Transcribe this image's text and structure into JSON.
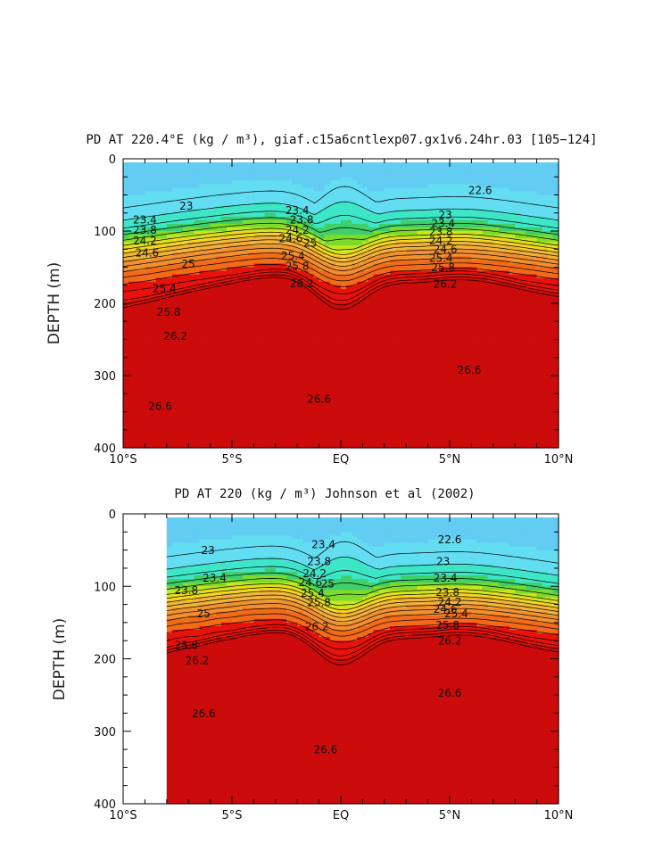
{
  "colors": {
    "palette": [
      "#ffffff",
      "#9b3bdb",
      "#1515e8",
      "#1e5ff0",
      "#2a8ff2",
      "#38b3f2",
      "#62ccf3",
      "#62ddf2",
      "#3ee6c8",
      "#3ecf6a",
      "#7ddb2a",
      "#c8e61c",
      "#f2d81c",
      "#f2b238",
      "#f29030",
      "#f26b18",
      "#e8120c",
      "#cc0b0b"
    ]
  },
  "chart_data": [
    {
      "type": "contour",
      "title": "PD AT 220.4°E (kg / m³), giaf.c15a6cntlexp07.gx1v6.24hr.03 [105−124]",
      "xlabel": "",
      "ylabel": "DEPTH (m)",
      "xlim": [
        -10,
        10
      ],
      "ylim": [
        400,
        0
      ],
      "xticks": [
        {
          "v": -10,
          "t": "10°S"
        },
        {
          "v": -5,
          "t": "5°S"
        },
        {
          "v": 0,
          "t": "EQ"
        },
        {
          "v": 5,
          "t": "5°N"
        },
        {
          "v": 10,
          "t": "10°N"
        }
      ],
      "yticks": [
        {
          "v": 0,
          "t": "0"
        },
        {
          "v": 100,
          "t": "100"
        },
        {
          "v": 200,
          "t": "200"
        },
        {
          "v": 300,
          "t": "300"
        },
        {
          "v": 400,
          "t": "400"
        }
      ],
      "data_xmin": -10,
      "data_top_depth": 5,
      "contour_levels": [
        22.2,
        22.4,
        22.6,
        22.8,
        23.0,
        23.2,
        23.4,
        23.6,
        23.8,
        24.0,
        24.2,
        24.4,
        24.6,
        24.8,
        25.0,
        25.2,
        25.4,
        25.6,
        25.8,
        26.0,
        26.2,
        26.4,
        26.6,
        26.8
      ],
      "contour_labels": [
        {
          "x": -7.1,
          "y": 68,
          "t": "23"
        },
        {
          "x": -9.0,
          "y": 87,
          "t": "23.4"
        },
        {
          "x": -9.0,
          "y": 101,
          "t": "23.8"
        },
        {
          "x": -9.0,
          "y": 116,
          "t": "24.2"
        },
        {
          "x": -8.9,
          "y": 133,
          "t": "24.6"
        },
        {
          "x": -7.0,
          "y": 148,
          "t": "25"
        },
        {
          "x": -8.1,
          "y": 182,
          "t": "25.4"
        },
        {
          "x": -7.9,
          "y": 215,
          "t": "25.8"
        },
        {
          "x": -7.6,
          "y": 248,
          "t": "26.2"
        },
        {
          "x": -8.3,
          "y": 345,
          "t": "26.6"
        },
        {
          "x": -2.0,
          "y": 74,
          "t": "23.4"
        },
        {
          "x": -1.8,
          "y": 87,
          "t": "23.8"
        },
        {
          "x": -2.0,
          "y": 101,
          "t": "24.2"
        },
        {
          "x": -2.3,
          "y": 113,
          "t": "24.6"
        },
        {
          "x": -1.4,
          "y": 119,
          "t": "25"
        },
        {
          "x": -2.2,
          "y": 137,
          "t": "25.4"
        },
        {
          "x": -2.0,
          "y": 151,
          "t": "25.8"
        },
        {
          "x": -1.8,
          "y": 175,
          "t": "26.2"
        },
        {
          "x": -1.0,
          "y": 335,
          "t": "26.6"
        },
        {
          "x": 6.4,
          "y": 46,
          "t": "22.6"
        },
        {
          "x": 4.8,
          "y": 80,
          "t": "23"
        },
        {
          "x": 4.7,
          "y": 92,
          "t": "23.4"
        },
        {
          "x": 4.6,
          "y": 104,
          "t": "23.8"
        },
        {
          "x": 4.6,
          "y": 116,
          "t": "24.2"
        },
        {
          "x": 4.8,
          "y": 128,
          "t": "24.6"
        },
        {
          "x": 4.6,
          "y": 140,
          "t": "25.4"
        },
        {
          "x": 4.7,
          "y": 153,
          "t": "25.8"
        },
        {
          "x": 4.8,
          "y": 176,
          "t": "26.2"
        },
        {
          "x": 5.9,
          "y": 295,
          "t": "26.6"
        }
      ]
    },
    {
      "type": "contour",
      "title": "PD AT 220 (kg / m³) Johnson et al (2002)",
      "xlabel": "",
      "ylabel": "DEPTH (m)",
      "xlim": [
        -10,
        10
      ],
      "ylim": [
        400,
        0
      ],
      "xticks": [
        {
          "v": -10,
          "t": "10°S"
        },
        {
          "v": -5,
          "t": "5°S"
        },
        {
          "v": 0,
          "t": "EQ"
        },
        {
          "v": 5,
          "t": "5°N"
        },
        {
          "v": 10,
          "t": "10°N"
        }
      ],
      "yticks": [
        {
          "v": 0,
          "t": "0"
        },
        {
          "v": 100,
          "t": "100"
        },
        {
          "v": 200,
          "t": "200"
        },
        {
          "v": 300,
          "t": "300"
        },
        {
          "v": 400,
          "t": "400"
        }
      ],
      "data_xmin": -8,
      "data_top_depth": 5,
      "contour_levels": [
        22.2,
        22.4,
        22.6,
        22.8,
        23.0,
        23.2,
        23.4,
        23.6,
        23.8,
        24.0,
        24.2,
        24.4,
        24.6,
        24.8,
        25.0,
        25.2,
        25.4,
        25.6,
        25.8,
        26.0,
        26.2,
        26.4,
        26.6,
        26.8
      ],
      "contour_labels": [
        {
          "x": -6.1,
          "y": 53,
          "t": "23"
        },
        {
          "x": -5.8,
          "y": 91,
          "t": "23.4"
        },
        {
          "x": -7.1,
          "y": 108,
          "t": "23.8"
        },
        {
          "x": -6.3,
          "y": 140,
          "t": "25"
        },
        {
          "x": -7.1,
          "y": 184,
          "t": "25.8"
        },
        {
          "x": -6.6,
          "y": 205,
          "t": "26.2"
        },
        {
          "x": -6.3,
          "y": 278,
          "t": "26.6"
        },
        {
          "x": -0.8,
          "y": 45,
          "t": "23.4"
        },
        {
          "x": -1.0,
          "y": 68,
          "t": "23.8"
        },
        {
          "x": -1.2,
          "y": 85,
          "t": "24.2"
        },
        {
          "x": -1.4,
          "y": 97,
          "t": "24.6"
        },
        {
          "x": -0.6,
          "y": 99,
          "t": "25"
        },
        {
          "x": -1.3,
          "y": 112,
          "t": "25.4"
        },
        {
          "x": -1.0,
          "y": 125,
          "t": "25.8"
        },
        {
          "x": -1.1,
          "y": 158,
          "t": "26.2"
        },
        {
          "x": -0.7,
          "y": 328,
          "t": "26.6"
        },
        {
          "x": 5.0,
          "y": 38,
          "t": "22.6"
        },
        {
          "x": 4.7,
          "y": 68,
          "t": "23"
        },
        {
          "x": 4.8,
          "y": 91,
          "t": "23.4"
        },
        {
          "x": 4.9,
          "y": 111,
          "t": "23.8"
        },
        {
          "x": 5.0,
          "y": 124,
          "t": "24.2"
        },
        {
          "x": 4.8,
          "y": 134,
          "t": "24.6"
        },
        {
          "x": 5.3,
          "y": 140,
          "t": "25.4"
        },
        {
          "x": 4.9,
          "y": 156,
          "t": "25.8"
        },
        {
          "x": 5.0,
          "y": 178,
          "t": "26.2"
        },
        {
          "x": 5.0,
          "y": 250,
          "t": "26.6"
        }
      ]
    }
  ]
}
